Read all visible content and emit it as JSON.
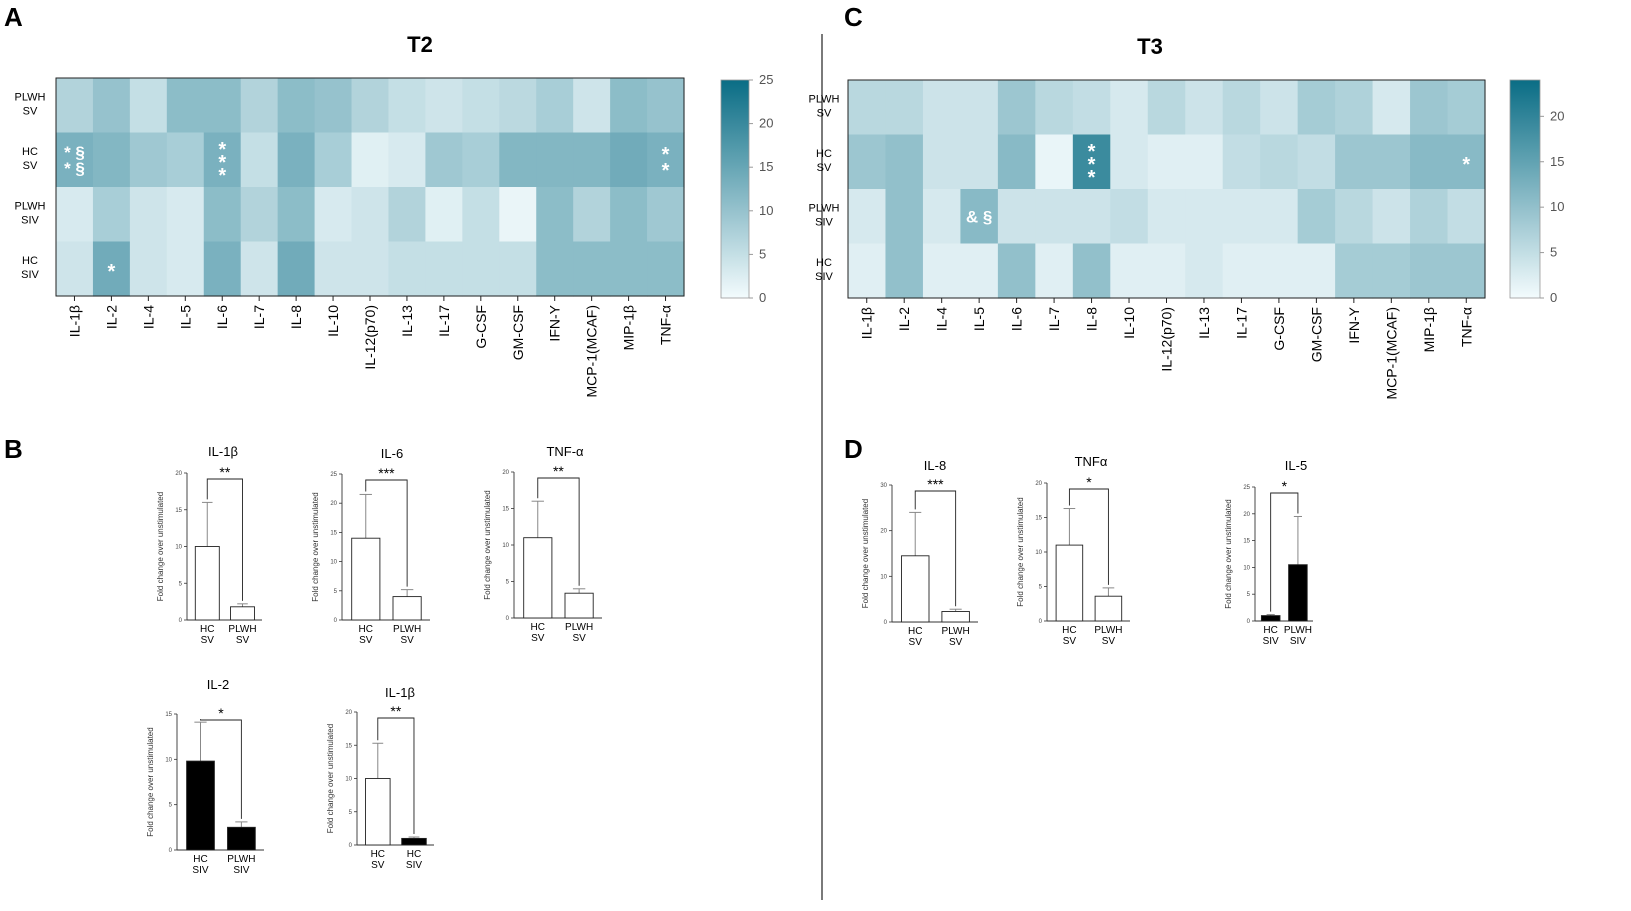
{
  "panels": {
    "a": "A",
    "b": "B",
    "c": "C",
    "d": "D"
  },
  "chart_data": [
    {
      "type": "heatmap",
      "id": "hmA",
      "title": "T2",
      "rows": [
        [
          "PLWH",
          "SV"
        ],
        [
          "HC",
          "SV"
        ],
        [
          "PLWH",
          "SIV"
        ],
        [
          "HC",
          "SIV"
        ]
      ],
      "columns": [
        "IL-1β",
        "IL-2",
        "IL-4",
        "IL-5",
        "IL-6",
        "IL-7",
        "IL-8",
        "IL-10",
        "IL-12(p70)",
        "IL-13",
        "IL-17",
        "G-CSF",
        "GM-CSF",
        "IFN-Y",
        "MCP-1(MCAF)",
        "MIP-1β",
        "TNF-α"
      ],
      "values": [
        [
          7,
          10,
          5,
          11,
          11,
          7,
          11,
          10,
          7,
          5,
          4,
          5,
          6,
          8,
          4,
          11,
          10
        ],
        [
          13,
          12,
          9,
          8,
          13,
          5,
          13,
          8,
          2,
          3,
          9,
          8,
          12,
          12,
          12,
          14,
          13
        ],
        [
          3,
          8,
          4,
          3,
          11,
          7,
          11,
          3,
          4,
          7,
          2,
          5,
          1,
          11,
          7,
          11,
          9
        ],
        [
          4,
          14,
          4,
          3,
          13,
          4,
          14,
          4,
          4,
          5,
          5,
          5,
          5,
          11,
          11,
          11,
          11
        ]
      ],
      "colorbar": {
        "min": 0,
        "max": 25,
        "ticks": [
          0,
          5,
          10,
          15,
          20,
          25
        ],
        "low_color": "#f3fbfd",
        "high_color": "#0a6d85"
      },
      "annotations": [
        {
          "row": 1,
          "col": 0,
          "lines": [
            "* §",
            "* §"
          ]
        },
        {
          "row": 1,
          "col": 4,
          "lines": [
            "*",
            "*",
            "*"
          ]
        },
        {
          "row": 1,
          "col": 16,
          "lines": [
            "*",
            "*"
          ]
        },
        {
          "row": 3,
          "col": 1,
          "lines": [
            "*"
          ]
        }
      ]
    },
    {
      "type": "heatmap",
      "id": "hmC",
      "title": "T3",
      "rows": [
        [
          "PLWH",
          "SV"
        ],
        [
          "HC",
          "SV"
        ],
        [
          "PLWH",
          "SIV"
        ],
        [
          "HC",
          "SIV"
        ]
      ],
      "columns": [
        "IL-1β",
        "IL-2",
        "IL-4",
        "IL-5",
        "IL-6",
        "IL-7",
        "IL-8",
        "IL-10",
        "IL-12(p70)",
        "IL-13",
        "IL-17",
        "G-CSF",
        "GM-CSF",
        "IFN-Y",
        "MCP-1(MCAF)",
        "MIP-1β",
        "TNF-α"
      ],
      "values": [
        [
          6,
          6,
          4,
          4,
          9,
          6,
          5,
          3,
          6,
          4,
          6,
          4,
          8,
          7,
          3,
          9,
          8
        ],
        [
          9,
          10,
          4,
          4,
          11,
          1,
          19,
          3,
          2,
          2,
          5,
          6,
          5,
          9,
          9,
          11,
          11
        ],
        [
          3,
          10,
          3,
          11,
          4,
          4,
          4,
          5,
          3,
          3,
          3,
          3,
          8,
          6,
          4,
          7,
          5
        ],
        [
          2,
          10,
          2,
          2,
          10,
          2,
          10,
          2,
          2,
          3,
          2,
          2,
          2,
          8,
          8,
          9,
          9
        ]
      ],
      "colorbar": {
        "min": 0,
        "max": 24,
        "ticks": [
          0,
          5,
          10,
          15,
          20
        ],
        "low_color": "#f3fbfd",
        "high_color": "#0a6d85"
      },
      "annotations": [
        {
          "row": 1,
          "col": 6,
          "lines": [
            "*",
            "*",
            "*"
          ]
        },
        {
          "row": 1,
          "col": 16,
          "lines": [
            "*"
          ]
        },
        {
          "row": 2,
          "col": 3,
          "lines": [
            "& §"
          ]
        }
      ]
    },
    {
      "type": "bar",
      "id": "b1",
      "title": "IL-1β",
      "ylabel": "Fold change over unstimulated",
      "ylim": [
        0,
        20
      ],
      "yticks": [
        0,
        5,
        10,
        15,
        20
      ],
      "significance": "**",
      "bars": [
        {
          "label": [
            "HC",
            "SV"
          ],
          "value": 10,
          "error": 6,
          "color": "#ffffff"
        },
        {
          "label": [
            "PLWH",
            "SV"
          ],
          "value": 1.8,
          "error": 0.4,
          "color": "#ffffff"
        }
      ]
    },
    {
      "type": "bar",
      "id": "b2",
      "title": "IL-6",
      "ylabel": "Fold change over unstimulated",
      "ylim": [
        0,
        25
      ],
      "yticks": [
        0,
        5,
        10,
        15,
        20,
        25
      ],
      "significance": "***",
      "bars": [
        {
          "label": [
            "HC",
            "SV"
          ],
          "value": 14,
          "error": 7.5,
          "color": "#ffffff"
        },
        {
          "label": [
            "PLWH",
            "SV"
          ],
          "value": 4,
          "error": 1.2,
          "color": "#ffffff"
        }
      ]
    },
    {
      "type": "bar",
      "id": "b3",
      "title": "TNF-α",
      "ylabel": "Fold change over unstimulated",
      "ylim": [
        0,
        20
      ],
      "yticks": [
        0,
        5,
        10,
        15,
        20
      ],
      "significance": "**",
      "bars": [
        {
          "label": [
            "HC",
            "SV"
          ],
          "value": 11,
          "error": 5,
          "color": "#ffffff"
        },
        {
          "label": [
            "PLWH",
            "SV"
          ],
          "value": 3.4,
          "error": 0.6,
          "color": "#ffffff"
        }
      ]
    },
    {
      "type": "bar",
      "id": "b4",
      "title": "IL-2",
      "ylabel": "Fold change over unstimulated",
      "ylim": [
        0,
        15
      ],
      "yticks": [
        0,
        5,
        10,
        15
      ],
      "significance": "*",
      "bars": [
        {
          "label": [
            "HC",
            "SIV"
          ],
          "value": 9.8,
          "error": 4.3,
          "color": "#000000"
        },
        {
          "label": [
            "PLWH",
            "SIV"
          ],
          "value": 2.5,
          "error": 0.6,
          "color": "#000000"
        }
      ]
    },
    {
      "type": "bar",
      "id": "b5",
      "title": "IL-1β",
      "ylabel": "Fold change over unstimulated",
      "ylim": [
        0,
        20
      ],
      "yticks": [
        0,
        5,
        10,
        15,
        20
      ],
      "significance": "**",
      "bars": [
        {
          "label": [
            "HC",
            "SV"
          ],
          "value": 10,
          "error": 5.3,
          "color": "#ffffff"
        },
        {
          "label": [
            "HC",
            "SIV"
          ],
          "value": 1,
          "error": 0.2,
          "color": "#000000"
        }
      ]
    },
    {
      "type": "bar",
      "id": "b6",
      "title": "IL-8",
      "ylabel": "Fold change over unstimulated",
      "ylim": [
        0,
        30
      ],
      "yticks": [
        0,
        10,
        20,
        30
      ],
      "significance": "***",
      "bars": [
        {
          "label": [
            "HC",
            "SV"
          ],
          "value": 14.5,
          "error": 9.5,
          "color": "#ffffff"
        },
        {
          "label": [
            "PLWH",
            "SV"
          ],
          "value": 2.3,
          "error": 0.5,
          "color": "#ffffff"
        }
      ]
    },
    {
      "type": "bar",
      "id": "b7",
      "title": "TNFα",
      "ylabel": "Fold change over unstimulated",
      "ylim": [
        0,
        20
      ],
      "yticks": [
        0,
        5,
        10,
        15,
        20
      ],
      "significance": "*",
      "bars": [
        {
          "label": [
            "HC",
            "SV"
          ],
          "value": 11,
          "error": 5.3,
          "color": "#ffffff"
        },
        {
          "label": [
            "PLWH",
            "SV"
          ],
          "value": 3.6,
          "error": 1.2,
          "color": "#ffffff"
        }
      ]
    },
    {
      "type": "bar",
      "id": "b8",
      "title": "IL-5",
      "ylabel": "Fold change over unstimulated",
      "ylim": [
        0,
        25
      ],
      "yticks": [
        0,
        5,
        10,
        15,
        20,
        25
      ],
      "significance": "*",
      "bars": [
        {
          "label": [
            "HC",
            "SIV"
          ],
          "value": 1,
          "error": 0.2,
          "color": "#000000"
        },
        {
          "label": [
            "PLWH",
            "SIV"
          ],
          "value": 10.5,
          "error": 9,
          "color": "#000000"
        }
      ]
    }
  ]
}
